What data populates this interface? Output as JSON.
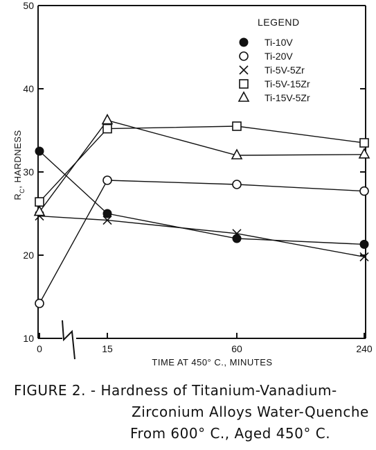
{
  "chart_data": {
    "type": "line",
    "title": "",
    "xlabel": "TIME AT 450° C., MINUTES",
    "ylabel_prefix": "R",
    "ylabel_sub": "C",
    "ylabel_suffix": ", HARDNESS",
    "x_categories": [
      "0",
      "15",
      "60",
      "240"
    ],
    "ylim": [
      10,
      50
    ],
    "yticks": [
      10,
      20,
      30,
      40,
      50
    ],
    "grid": false,
    "legend_position": "top-right",
    "legend_title": "LEGEND",
    "series": [
      {
        "name": "Ti-10V",
        "marker": "filled-circle",
        "values": [
          32.5,
          25.0,
          22.0,
          21.3
        ]
      },
      {
        "name": "Ti-20V",
        "marker": "open-circle",
        "values": [
          14.2,
          29.0,
          28.5,
          27.7
        ]
      },
      {
        "name": "Ti-5V-5Zr",
        "marker": "x",
        "values": [
          24.7,
          24.2,
          22.6,
          19.8
        ]
      },
      {
        "name": "Ti-5V-15Zr",
        "marker": "open-square",
        "values": [
          26.4,
          35.2,
          35.5,
          33.5
        ]
      },
      {
        "name": "Ti-15V-5Zr",
        "marker": "open-triangle",
        "values": [
          25.2,
          36.2,
          32.0,
          32.1
        ]
      }
    ]
  },
  "caption": {
    "line1": "FIGURE  2.  - Hardness of Titanium-Vanadium-",
    "line2": "Zirconium Alloys Water-Quenche",
    "line3": "From 600° C., Aged 450° C."
  }
}
